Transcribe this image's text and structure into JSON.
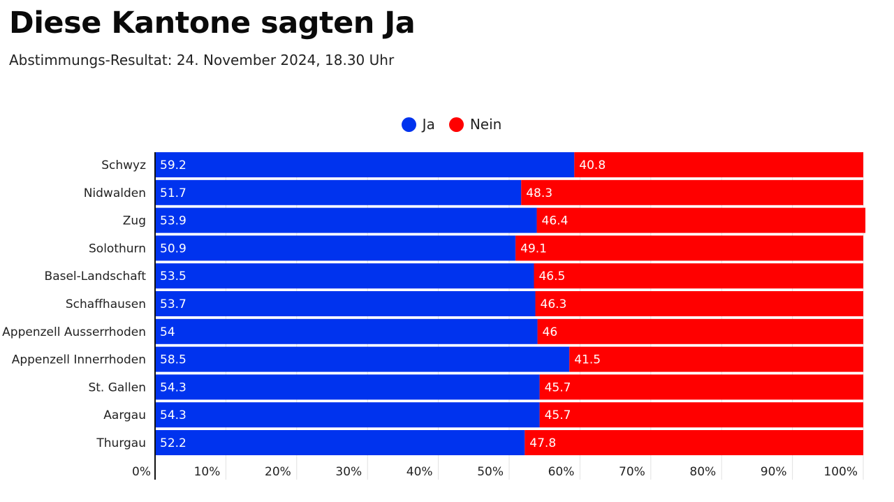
{
  "header": {
    "title": "Diese Kantone sagten Ja",
    "subtitle": "Abstimmungs-Resultat: 24. November 2024, 18.30 Uhr"
  },
  "legend": [
    {
      "label": "Ja",
      "color": "#0033ee"
    },
    {
      "label": "Nein",
      "color": "#ff0000"
    }
  ],
  "chart_data": {
    "type": "bar",
    "orientation": "horizontal",
    "stacked": true,
    "title": "Diese Kantone sagten Ja",
    "subtitle": "Abstimmungs-Resultat: 24. November 2024, 18.30 Uhr",
    "categories": [
      "Schwyz",
      "Nidwalden",
      "Zug",
      "Solothurn",
      "Basel-Landschaft",
      "Schaffhausen",
      "Appenzell Ausserrhoden",
      "Appenzell Innerrhoden",
      "St. Gallen",
      "Aargau",
      "Thurgau"
    ],
    "series": [
      {
        "name": "Ja",
        "color": "#0033ee",
        "values": [
          59.2,
          51.7,
          53.9,
          50.9,
          53.5,
          53.7,
          54,
          58.5,
          54.3,
          54.3,
          52.2
        ]
      },
      {
        "name": "Nein",
        "color": "#ff0000",
        "values": [
          40.8,
          48.3,
          46.4,
          49.1,
          46.5,
          46.3,
          46,
          41.5,
          45.7,
          45.7,
          47.8
        ]
      }
    ],
    "xlim": [
      0,
      100
    ],
    "ticks": [
      "0%",
      "10%",
      "20%",
      "30%",
      "40%",
      "50%",
      "60%",
      "70%",
      "80%",
      "90%",
      "100%"
    ],
    "grid": true,
    "legend_position": "top-center"
  }
}
